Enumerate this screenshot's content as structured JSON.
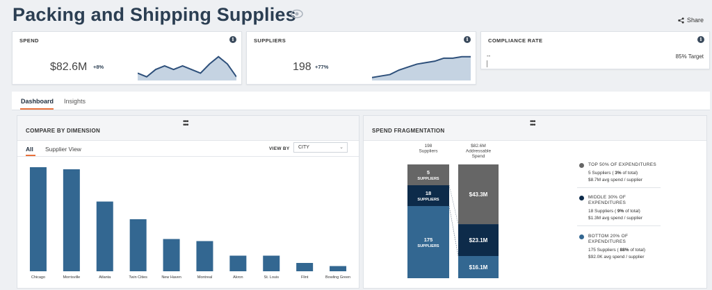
{
  "page": {
    "title": "Packing and Shipping Supplies",
    "share_label": "Share"
  },
  "kpis": {
    "spend": {
      "title": "SPEND",
      "value": "$82.6M",
      "delta": "+8%",
      "trend": [
        4,
        2,
        6,
        8,
        6,
        8,
        6,
        4,
        9,
        13,
        9,
        2
      ]
    },
    "suppliers": {
      "title": "SUPPLIERS",
      "value": "198",
      "delta": "+77%",
      "trend": [
        2,
        3,
        4,
        7,
        9,
        11,
        12,
        13,
        15,
        15,
        16,
        16
      ]
    },
    "compliance": {
      "title": "COMPLIANCE RATE",
      "value": "--",
      "target": "85% Target"
    }
  },
  "tabs": [
    {
      "label": "Dashboard",
      "active": true
    },
    {
      "label": "Insights",
      "active": false
    }
  ],
  "compare": {
    "title": "COMPARE BY DIMENSION",
    "subtabs": [
      {
        "label": "All"
      },
      {
        "label": "Supplier View"
      }
    ],
    "view_by_label": "VIEW BY",
    "view_by_value": "CITY"
  },
  "chart_data": {
    "type": "bar",
    "categories": [
      "Chicago",
      "Morrisville",
      "Atlanta",
      "Twin Cities",
      "New Haven",
      "Montreal",
      "Akron",
      "St. Louis",
      "Flint",
      "Bowling Green"
    ],
    "values": [
      100,
      98,
      67,
      50,
      31,
      29,
      15,
      15,
      8,
      5
    ],
    "title": "",
    "color": "#336791"
  },
  "fragmentation": {
    "title": "SPEND FRAGMENTATION",
    "left_header": "198\nSuppliers",
    "right_header": "$82.6M\nAddressable\nSpend",
    "left_segments": [
      {
        "count": "5",
        "label": "SUPPLIERS",
        "color": "#666666",
        "share": 5
      },
      {
        "count": "18",
        "label": "SUPPLIERS",
        "color": "#0d2b4a",
        "share": 18
      },
      {
        "count": "175",
        "label": "SUPPLIERS",
        "color": "#336791",
        "share": 175
      }
    ],
    "right_segments": [
      {
        "value": "$43.3M",
        "color": "#666666",
        "share": 43.3
      },
      {
        "value": "$23.1M",
        "color": "#0d2b4a",
        "share": 23.1
      },
      {
        "value": "$16.1M",
        "color": "#336791",
        "share": 16.1
      }
    ],
    "legend": [
      {
        "title": "TOP 50% OF EXPENDITURES",
        "count_prefix": "5 Suppliers ( ",
        "pct": "3%",
        "count_suffix": " of total)",
        "avg": "$8.7M avg spend / supplier",
        "color": "#666666"
      },
      {
        "title": "MIDDLE 30% OF\nEXPENDITURES",
        "count_prefix": "18 Suppliers ( ",
        "pct": "9%",
        "count_suffix": " of total)",
        "avg": "$1.3M avg spend / supplier",
        "color": "#0d2b4a"
      },
      {
        "title": "BOTTOM 20% OF\nEXPENDITURES",
        "count_prefix": "175 Suppliers ( ",
        "pct": "88%",
        "count_suffix": " of total)",
        "avg": "$92.0K avg spend / supplier",
        "color": "#336791"
      }
    ]
  }
}
